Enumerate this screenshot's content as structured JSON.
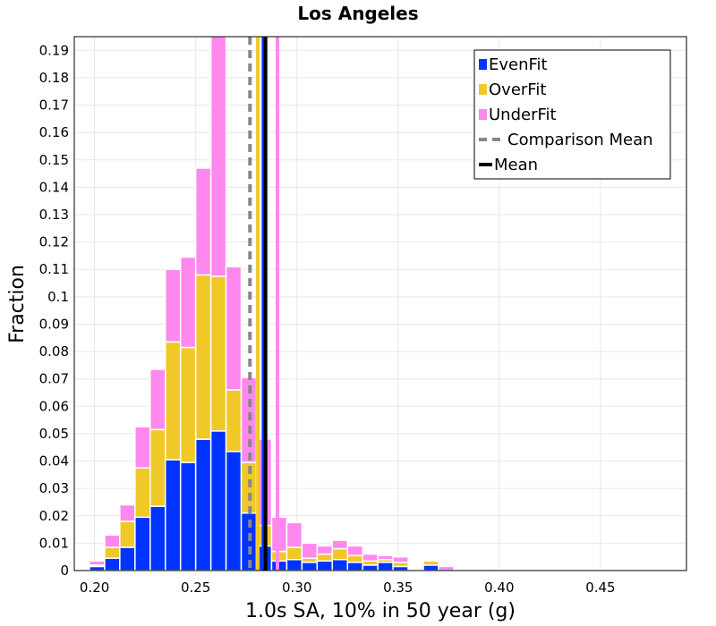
{
  "chart_data": {
    "type": "bar",
    "stacked": true,
    "title": "Los Angeles",
    "xlabel": "1.0s SA, 10% in 50 year (g)",
    "ylabel": "Fraction",
    "xlim": [
      0.19,
      0.4925
    ],
    "ylim": [
      0,
      0.195
    ],
    "xticks": [
      "0.20",
      "0.25",
      "0.30",
      "0.35",
      "0.40",
      "0.45"
    ],
    "yticks": [
      "0",
      "0.01",
      "0.02",
      "0.03",
      "0.04",
      "0.05",
      "0.06",
      "0.07",
      "0.08",
      "0.09",
      "0.1",
      "0.11",
      "0.12",
      "0.13",
      "0.14",
      "0.15",
      "0.16",
      "0.17",
      "0.18",
      "0.19"
    ],
    "bin_width": 0.0075,
    "x": [
      0.19375,
      0.20125,
      0.20875,
      0.21625,
      0.22375,
      0.23125,
      0.23875,
      0.24625,
      0.25375,
      0.26125,
      0.26875,
      0.27625,
      0.28375,
      0.29125,
      0.29875,
      0.30625,
      0.31375,
      0.32125,
      0.32875,
      0.33625,
      0.34375,
      0.35125,
      0.35875,
      0.36625,
      0.37375,
      0.38125,
      0.38875,
      0.39625,
      0.40375,
      0.41125,
      0.41875,
      0.42625,
      0.43375,
      0.44125,
      0.44875,
      0.45625,
      0.46375,
      0.47125,
      0.47875,
      0.48625
    ],
    "series": [
      {
        "name": "EvenFit",
        "color": "#0033ff",
        "values": [
          0,
          0.0015,
          0.0045,
          0.0085,
          0.0195,
          0.0235,
          0.0405,
          0.0395,
          0.048,
          0.051,
          0.0435,
          0.021,
          0.009,
          0.0035,
          0.004,
          0.003,
          0.0035,
          0.004,
          0.003,
          0.002,
          0.003,
          0.0015,
          0,
          0.002,
          0,
          0,
          0,
          0.0005,
          0,
          0,
          0,
          0,
          0,
          0,
          0,
          0,
          0,
          0,
          0,
          0
        ]
      },
      {
        "name": "OverFit",
        "color": "#f0c828",
        "values": [
          0,
          0.0005,
          0.004,
          0.0095,
          0.018,
          0.028,
          0.043,
          0.042,
          0.06,
          0.0565,
          0.0225,
          0.0185,
          0.0075,
          0.0035,
          0.0045,
          0.0015,
          0.0025,
          0.004,
          0.0025,
          0.0015,
          0.001,
          0.0015,
          0.0005,
          0.0015,
          0,
          0,
          0,
          0,
          0,
          0,
          0,
          0,
          0,
          0,
          0,
          0,
          0,
          0,
          0,
          0
        ]
      },
      {
        "name": "UnderFit",
        "color": "#ff88ee",
        "values": [
          0.0005,
          0.0015,
          0.0045,
          0.006,
          0.015,
          0.022,
          0.0265,
          0.033,
          0.039,
          0.0905,
          0.045,
          0.031,
          0.0315,
          0.0125,
          0.009,
          0.0055,
          0.003,
          0.003,
          0.0035,
          0.0025,
          0.0015,
          0.002,
          0.0005,
          0.0005,
          0.0015,
          0,
          0.0005,
          0,
          0.0005,
          0,
          0,
          0,
          0.0005,
          0,
          0.0005,
          0.0005,
          0,
          0,
          0,
          0
        ]
      }
    ],
    "comparison_mean": 0.2768,
    "mean": 0.2845,
    "vertical_lines": [
      {
        "name": "EvenFit mean",
        "x": 0.2835,
        "color": "#0033ff"
      },
      {
        "name": "OverFit mean",
        "x": 0.2807,
        "color": "#f0c828"
      },
      {
        "name": "UnderFit mean",
        "x": 0.2904,
        "color": "#ff88ee"
      }
    ],
    "legend": [
      {
        "label": "EvenFit",
        "kind": "square",
        "color": "#0033ff"
      },
      {
        "label": "OverFit",
        "kind": "square",
        "color": "#f0c828"
      },
      {
        "label": "UnderFit",
        "kind": "square",
        "color": "#ff88ee"
      },
      {
        "label": "Comparison Mean",
        "kind": "dashed",
        "color": "#888888"
      },
      {
        "label": "Mean",
        "kind": "line",
        "color": "#000000"
      }
    ],
    "legend_position": "top-right",
    "grid": true
  }
}
